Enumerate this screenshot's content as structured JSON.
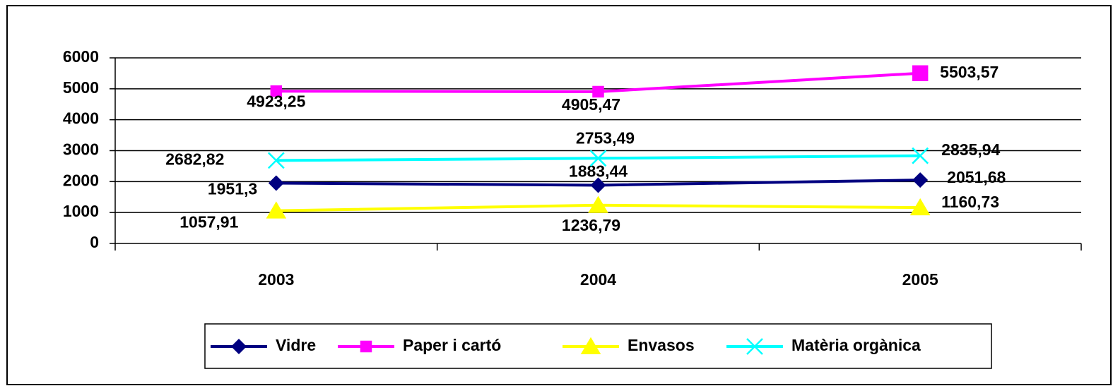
{
  "chart_data": {
    "type": "line",
    "categories": [
      "2003",
      "2004",
      "2005"
    ],
    "series": [
      {
        "name": "Vidre",
        "color": "#000080",
        "marker": "diamond",
        "values": [
          1951.3,
          1883.44,
          2051.68
        ],
        "value_labels": [
          "1951,3",
          "1883,44",
          "2051,68"
        ]
      },
      {
        "name": "Paper i cartó",
        "color": "#FF00FF",
        "marker": "square",
        "values": [
          4923.25,
          4905.47,
          5503.57
        ],
        "value_labels": [
          "4923,25",
          "4905,47",
          "5503,57"
        ]
      },
      {
        "name": "Envasos",
        "color": "#FFFF00",
        "marker": "triangle",
        "values": [
          1057.91,
          1236.79,
          1160.73
        ],
        "value_labels": [
          "1057,91",
          "1236,79",
          "1160,73"
        ]
      },
      {
        "name": "Matèria orgànica",
        "color": "#00FFFF",
        "marker": "x",
        "values": [
          2682.82,
          2753.49,
          2835.94
        ],
        "value_labels": [
          "2682,82",
          "2753,49",
          "2835,94"
        ]
      }
    ],
    "ylim": [
      0,
      6000
    ],
    "yticks": [
      0,
      1000,
      2000,
      3000,
      4000,
      5000,
      6000
    ],
    "grid": true,
    "legend": "bottom"
  }
}
